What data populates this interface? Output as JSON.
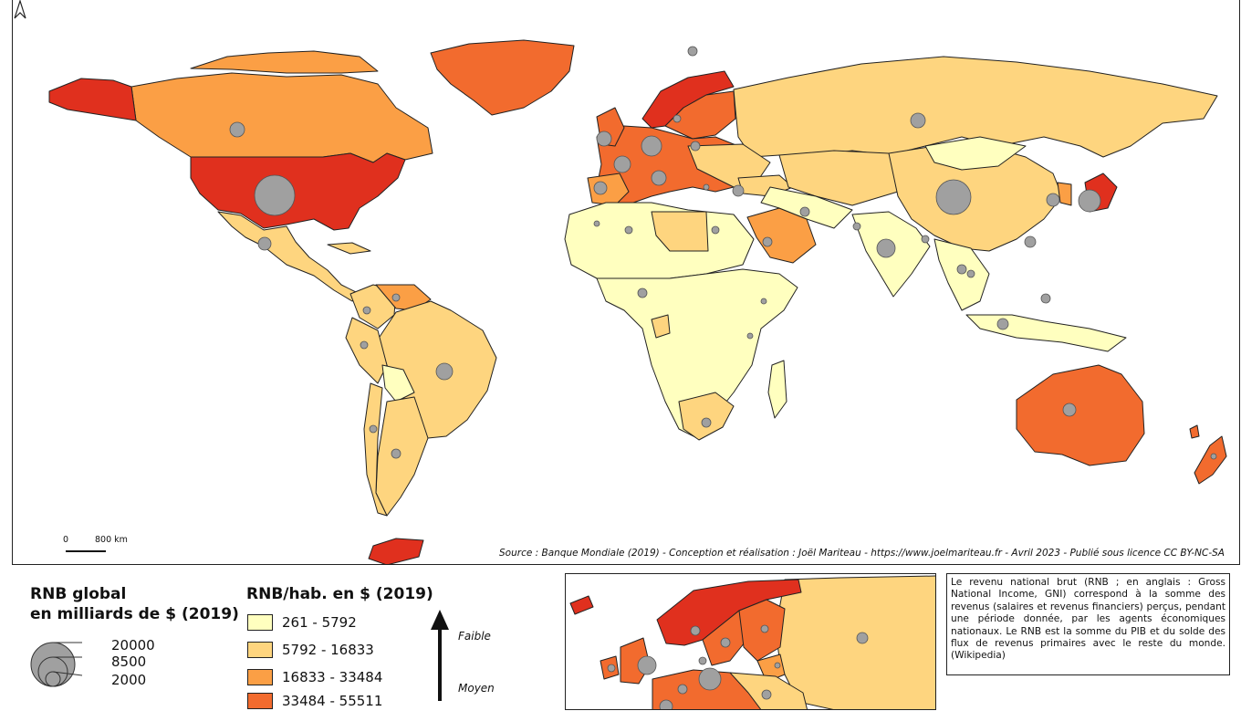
{
  "map": {
    "source_text": "Source : Banque Mondiale (2019) -  Conception et réalisation : Joël Mariteau - https://www.joelmariteau.fr - Avril 2023 - Publié sous licence CC BY-NC-SA",
    "scale": {
      "zero": "0",
      "distance": "800 km"
    },
    "icon": "north-arrow-icon"
  },
  "legend_global": {
    "title_line1": "RNB global",
    "title_line2": "en milliards de $ (2019)",
    "values": [
      "20000",
      "8500",
      "2000"
    ]
  },
  "legend_per_capita": {
    "title": "RNB/hab. en $ (2019)",
    "classes": [
      {
        "label": "261 - 5792",
        "color": "#ffffbf"
      },
      {
        "label": "5792 - 16833",
        "color": "#fed57f"
      },
      {
        "label": "16833 - 33484",
        "color": "#fb9f45"
      },
      {
        "label": "33484 - 55511",
        "color": "#f26b2e"
      }
    ],
    "axis_labels": [
      "Faible",
      "Moyen"
    ]
  },
  "definition": "Le revenu national brut (RNB ; en anglais : Gross National Income, GNI) correspond à la somme des revenus (salaires et revenus financiers) perçus, pendant une période donnée, par les agents économiques nationaux. Le RNB est la somme du PIB et du solde des flux de revenus primaires avec le reste du monde. (Wikipedia)",
  "colors": {
    "very_high": "#e0301e",
    "bubble": "#a0a0a0"
  }
}
